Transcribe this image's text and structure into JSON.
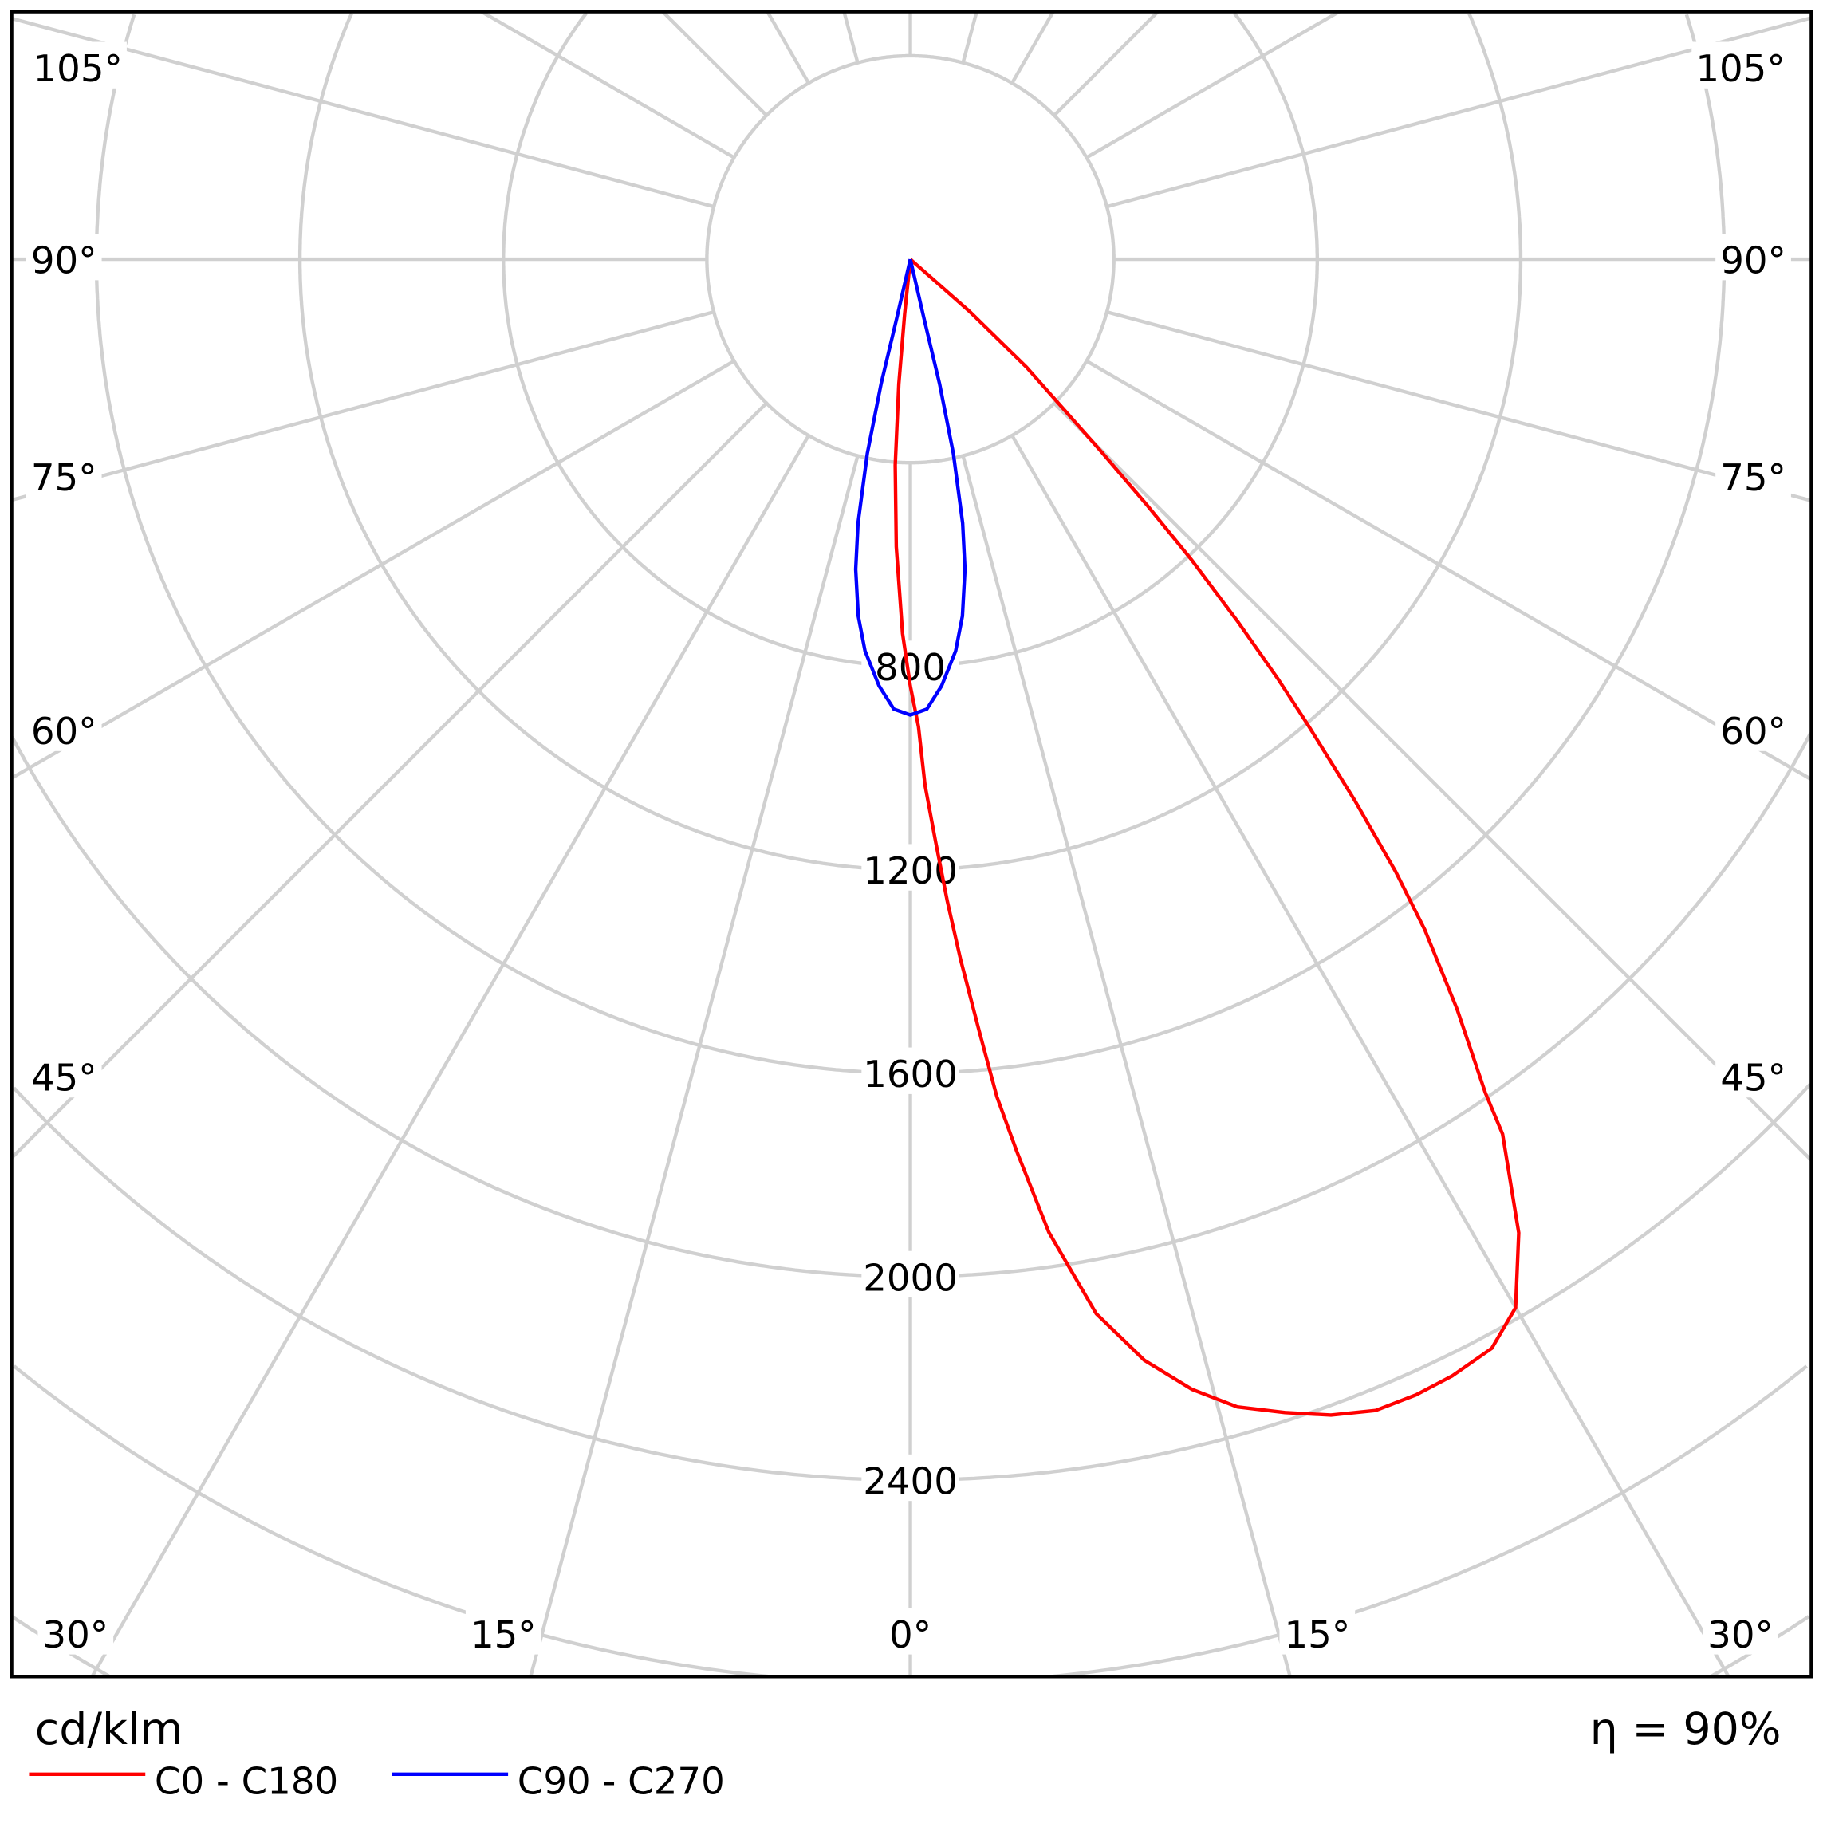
{
  "chart_data": {
    "type": "polar-line",
    "unit_label": "cd/klm",
    "efficiency_label": "η = 90%",
    "radial_ticks": [
      800,
      1200,
      1600,
      2000,
      2400
    ],
    "radial_grid_step": 400,
    "angle_grid_step_deg": 15,
    "angle_labels": {
      "left": [
        "105°",
        "90°",
        "75°",
        "60°",
        "45°",
        "30°",
        "15°"
      ],
      "center": "0°",
      "right": [
        "15°",
        "30°",
        "45°",
        "60°",
        "75°",
        "90°",
        "105°"
      ]
    },
    "grid": true,
    "legend_placement": "bottom-left",
    "series": [
      {
        "name": "C0 - C180",
        "color": "#ff0000",
        "points": [
          [
            -7,
            0
          ],
          [
            -6,
            108
          ],
          [
            -5.3,
            246
          ],
          [
            -4.2,
            406
          ],
          [
            -2.8,
            566
          ],
          [
            -1.2,
            736
          ],
          [
            0,
            839
          ],
          [
            1.0,
            919
          ],
          [
            1.6,
            1034
          ],
          [
            2.5,
            1148
          ],
          [
            3.3,
            1264
          ],
          [
            4.1,
            1380
          ],
          [
            5.1,
            1524
          ],
          [
            5.9,
            1655
          ],
          [
            6.8,
            1766
          ],
          [
            8.1,
            1932
          ],
          [
            10,
            2105
          ],
          [
            12,
            2213
          ],
          [
            14,
            2290
          ],
          [
            15.9,
            2346
          ],
          [
            18,
            2384
          ],
          [
            20,
            2418
          ],
          [
            22,
            2441
          ],
          [
            24,
            2444
          ],
          [
            25.9,
            2440
          ],
          [
            28.1,
            2427
          ],
          [
            30,
            2380
          ],
          [
            32,
            2257
          ],
          [
            34.1,
            2077
          ],
          [
            34.6,
            1991
          ],
          [
            36.1,
            1824
          ],
          [
            37.5,
            1661
          ],
          [
            38.4,
            1536
          ],
          [
            39.4,
            1376
          ],
          [
            40.5,
            1203
          ],
          [
            41.2,
            1100
          ],
          [
            42.1,
            961
          ],
          [
            43.1,
            810
          ],
          [
            43.9,
            673
          ],
          [
            44.8,
            532
          ],
          [
            47.1,
            312
          ],
          [
            48.6,
            155
          ],
          [
            50,
            0
          ]
        ]
      },
      {
        "name": "C90 - C270",
        "color": "#0000ff",
        "points": [
          [
            -14,
            0
          ],
          [
            -13,
            122
          ],
          [
            -13.2,
            251
          ],
          [
            -12.5,
            391
          ],
          [
            -11.2,
            529
          ],
          [
            -10,
            619
          ],
          [
            -8.3,
            709
          ],
          [
            -6.6,
            775
          ],
          [
            -4.2,
            841
          ],
          [
            -2.1,
            885
          ],
          [
            0,
            896
          ],
          [
            2.1,
            885
          ],
          [
            4.2,
            841
          ],
          [
            6.6,
            775
          ],
          [
            8.3,
            709
          ],
          [
            10,
            619
          ],
          [
            11.2,
            529
          ],
          [
            12.5,
            391
          ],
          [
            13.2,
            251
          ],
          [
            13,
            122
          ],
          [
            14,
            0
          ]
        ]
      }
    ]
  }
}
